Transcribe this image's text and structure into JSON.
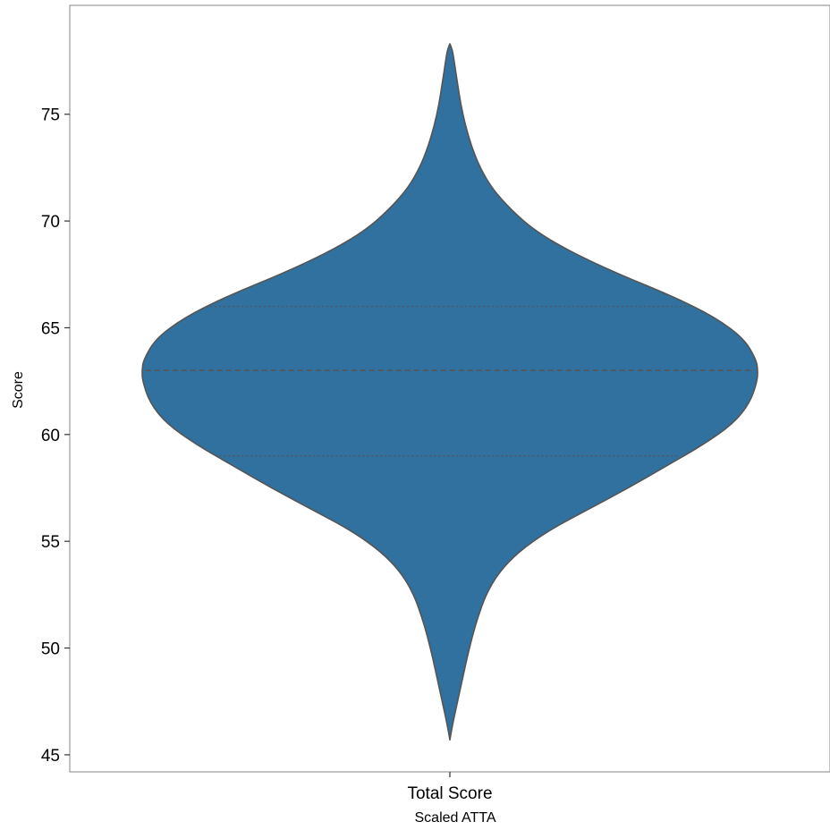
{
  "chart_data": {
    "type": "violin",
    "xlabel": "Scaled ATTA",
    "ylabel": "Score",
    "categories": [
      "Total Score"
    ],
    "ylim": [
      44.2,
      80.1
    ],
    "yticks": [
      45,
      50,
      55,
      60,
      65,
      70,
      75
    ],
    "grid": false,
    "legend": "none",
    "fill_color": "#3171a0",
    "outline_color": "#555555",
    "series": [
      {
        "category": "Total Score",
        "min": 45.7,
        "max": 78.3,
        "quartiles": {
          "q1": 59,
          "median": 63,
          "q3": 66
        },
        "density_profile": [
          [
            45.7,
            0.0
          ],
          [
            46.5,
            0.01
          ],
          [
            47.5,
            0.025
          ],
          [
            48.5,
            0.04
          ],
          [
            49.5,
            0.055
          ],
          [
            50.5,
            0.072
          ],
          [
            51.5,
            0.092
          ],
          [
            52.5,
            0.117
          ],
          [
            53.5,
            0.157
          ],
          [
            54.5,
            0.222
          ],
          [
            55.5,
            0.32
          ],
          [
            56.5,
            0.45
          ],
          [
            57.5,
            0.58
          ],
          [
            58.5,
            0.7
          ],
          [
            59.5,
            0.82
          ],
          [
            60.5,
            0.92
          ],
          [
            61.5,
            0.975
          ],
          [
            62.5,
            0.998
          ],
          [
            63.0,
            1.0
          ],
          [
            63.5,
            0.995
          ],
          [
            64.5,
            0.955
          ],
          [
            65.5,
            0.86
          ],
          [
            66.5,
            0.72
          ],
          [
            67.5,
            0.55
          ],
          [
            68.5,
            0.4
          ],
          [
            69.5,
            0.28
          ],
          [
            70.5,
            0.2
          ],
          [
            71.5,
            0.138
          ],
          [
            72.5,
            0.098
          ],
          [
            73.5,
            0.07
          ],
          [
            74.5,
            0.05
          ],
          [
            75.5,
            0.035
          ],
          [
            76.5,
            0.024
          ],
          [
            77.5,
            0.014
          ],
          [
            78.0,
            0.008
          ],
          [
            78.3,
            0.0
          ]
        ]
      }
    ]
  }
}
